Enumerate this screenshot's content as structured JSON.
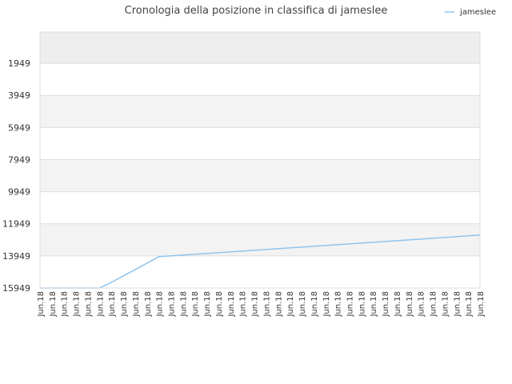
{
  "chart_data": {
    "type": "line",
    "title": "Cronologia della posizione in classifica di jameslee",
    "xlabel": "",
    "ylabel": "",
    "y_reversed": true,
    "ylim": [
      15949,
      0
    ],
    "yticks": [
      1949,
      3949,
      5949,
      7949,
      9949,
      11949,
      13949,
      15949
    ],
    "x": [
      "Jun.18",
      "Jun.18",
      "Jun.18",
      "Jun.18",
      "Jun.18",
      "Jun.18",
      "Jun.18",
      "Jun.18",
      "Jun.18",
      "Jun.18",
      "Jun.18",
      "Jun.18",
      "Jun.18",
      "Jun.18",
      "Jun.18",
      "Jun.18",
      "Jun.18",
      "Jun.18",
      "Jun.18",
      "Jun.18",
      "Jun.18",
      "Jun.18",
      "Jun.18",
      "Jun.18",
      "Jun.18",
      "Jun.18",
      "Jun.18",
      "Jun.18",
      "Jun.18",
      "Jun.18",
      "Jun.18",
      "Jun.18",
      "Jun.18",
      "Jun.18",
      "Jun.18",
      "Jun.18",
      "Jun.18",
      "Jun.18"
    ],
    "series": [
      {
        "name": "jameslee",
        "color": "#90c4ec",
        "values": [
          15949,
          15949,
          15949,
          15949,
          15949,
          15949,
          15600,
          15200,
          14800,
          14400,
          14000,
          13950,
          13900,
          13850,
          13800,
          13750,
          13700,
          13650,
          13600,
          13550,
          13500,
          13450,
          13400,
          13350,
          13300,
          13250,
          13200,
          13150,
          13100,
          13050,
          13000,
          12950,
          12900,
          12850,
          12800,
          12750,
          12700,
          12650
        ]
      }
    ],
    "grid": true,
    "band_colors": [
      "#eeeeee",
      "#ffffff",
      "#f3f3f3"
    ],
    "legend_position": "top-right"
  }
}
